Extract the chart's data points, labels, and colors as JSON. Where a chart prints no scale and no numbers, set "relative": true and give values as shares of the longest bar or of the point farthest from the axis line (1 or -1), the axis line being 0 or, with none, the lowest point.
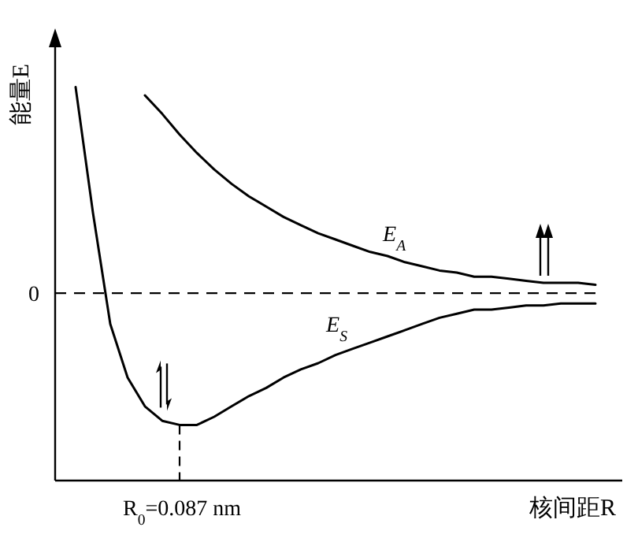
{
  "chart_data": {
    "type": "line",
    "relative": true,
    "ylabel": "能量E",
    "xlabel": "核间距R",
    "marker": "none",
    "line_style": "solid",
    "categories": [
      null,
      null,
      null,
      null,
      null,
      null,
      null,
      null,
      null,
      null,
      null,
      null,
      null,
      null,
      null,
      null,
      null,
      null,
      null,
      null,
      null,
      null,
      null,
      null,
      null,
      null,
      null,
      null,
      null,
      null,
      null
    ],
    "series": [
      {
        "name": "E$_{S}$",
        "color": "#000000",
        "values": [
          1.0,
          0.39,
          -0.15,
          -0.41,
          -0.55,
          -0.62,
          -0.64,
          -0.64,
          -0.6,
          -0.55,
          -0.5,
          -0.46,
          -0.41,
          -0.37,
          -0.34,
          -0.3,
          -0.27,
          -0.24,
          -0.21,
          -0.18,
          -0.15,
          -0.12,
          -0.1,
          -0.08,
          -0.08,
          -0.07,
          -0.06,
          -0.06,
          -0.05,
          -0.05,
          -0.05
        ]
      },
      {
        "name": "E$_{A}$",
        "color": "#000000",
        "values": [
          null,
          null,
          null,
          null,
          0.96,
          0.87,
          0.77,
          0.68,
          0.6,
          0.53,
          0.47,
          0.42,
          0.37,
          0.33,
          0.29,
          0.26,
          0.23,
          0.2,
          0.18,
          0.15,
          0.13,
          0.11,
          0.1,
          0.08,
          0.08,
          0.07,
          0.06,
          0.05,
          0.05,
          0.05,
          0.04
        ]
      }
    ],
    "ref_lines": [
      {
        "axis": "y",
        "value": 0,
        "label": "0",
        "line_style": "dashed",
        "color": "#000000"
      }
    ],
    "annotations": [
      "R$_{0}$=0.087 nm"
    ]
  }
}
